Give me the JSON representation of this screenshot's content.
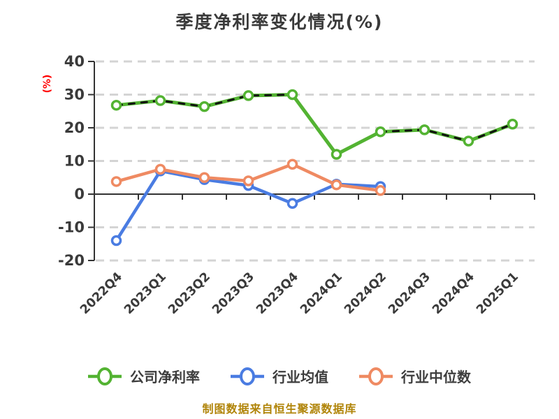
{
  "title": "季度净利率变化情况(%)",
  "footer": {
    "text": "制图数据来自恒生聚源数据库"
  },
  "colors": {
    "title_text": "#3a3a3a",
    "axis": "#333333",
    "grid": "#d4d4d4",
    "tick_label": "#3a3a3a",
    "unit_label": "#ff0000",
    "footer_text": "#b08408",
    "dash_overlay": "#111111",
    "marker_fill": "#ffffff"
  },
  "chart_data": {
    "type": "line",
    "title": "季度净利率变化情况(%)",
    "ylabel": "(%)",
    "xlabel": "",
    "ylim": [
      -20,
      40
    ],
    "yticks": [
      40,
      30,
      20,
      10,
      0,
      -10,
      -20
    ],
    "grid": "horizontal-dashed",
    "legend_position": "bottom",
    "categories": [
      "2022Q4",
      "2023Q1",
      "2023Q2",
      "2023Q3",
      "2023Q4",
      "2024Q1",
      "2024Q2",
      "2024Q3",
      "2024Q4",
      "2025Q1"
    ],
    "series": [
      {
        "name": "公司净利率",
        "color": "#53b332",
        "line_style": "solid-with-dark-dash-overlay",
        "values": [
          26.8,
          28.2,
          26.4,
          29.7,
          30.0,
          12.0,
          18.8,
          19.4,
          16.0,
          21.1
        ]
      },
      {
        "name": "行业均值",
        "color": "#4a7ce2",
        "line_style": "solid",
        "values": [
          -14.0,
          7.0,
          4.4,
          2.6,
          -2.8,
          3.0,
          2.3,
          null,
          null,
          null
        ]
      },
      {
        "name": "行业中位数",
        "color": "#ef8a62",
        "line_style": "solid",
        "values": [
          3.8,
          7.5,
          5.0,
          4.0,
          9.0,
          2.8,
          1.1,
          null,
          null,
          null
        ]
      }
    ]
  }
}
